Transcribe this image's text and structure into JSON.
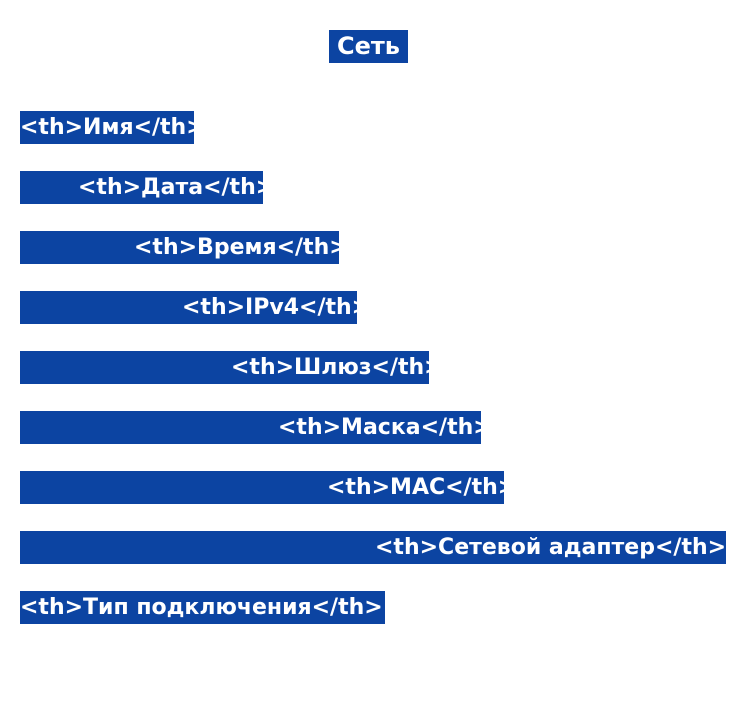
{
  "title": "Сеть",
  "items": [
    "<th>Имя</th>",
    "<th>Дата</th>",
    "<th>Время</th>",
    "<th>IPv4</th>",
    "<th>Шлюз</th>",
    "<th>Маска</th>",
    "<th>MAC</th>",
    "<th>Сетевой адаптер</th>",
    "<th>Тип подключения</th>"
  ],
  "colors": {
    "highlight": "#0c44a2",
    "text": "#ffffff",
    "background": "#ffffff"
  }
}
